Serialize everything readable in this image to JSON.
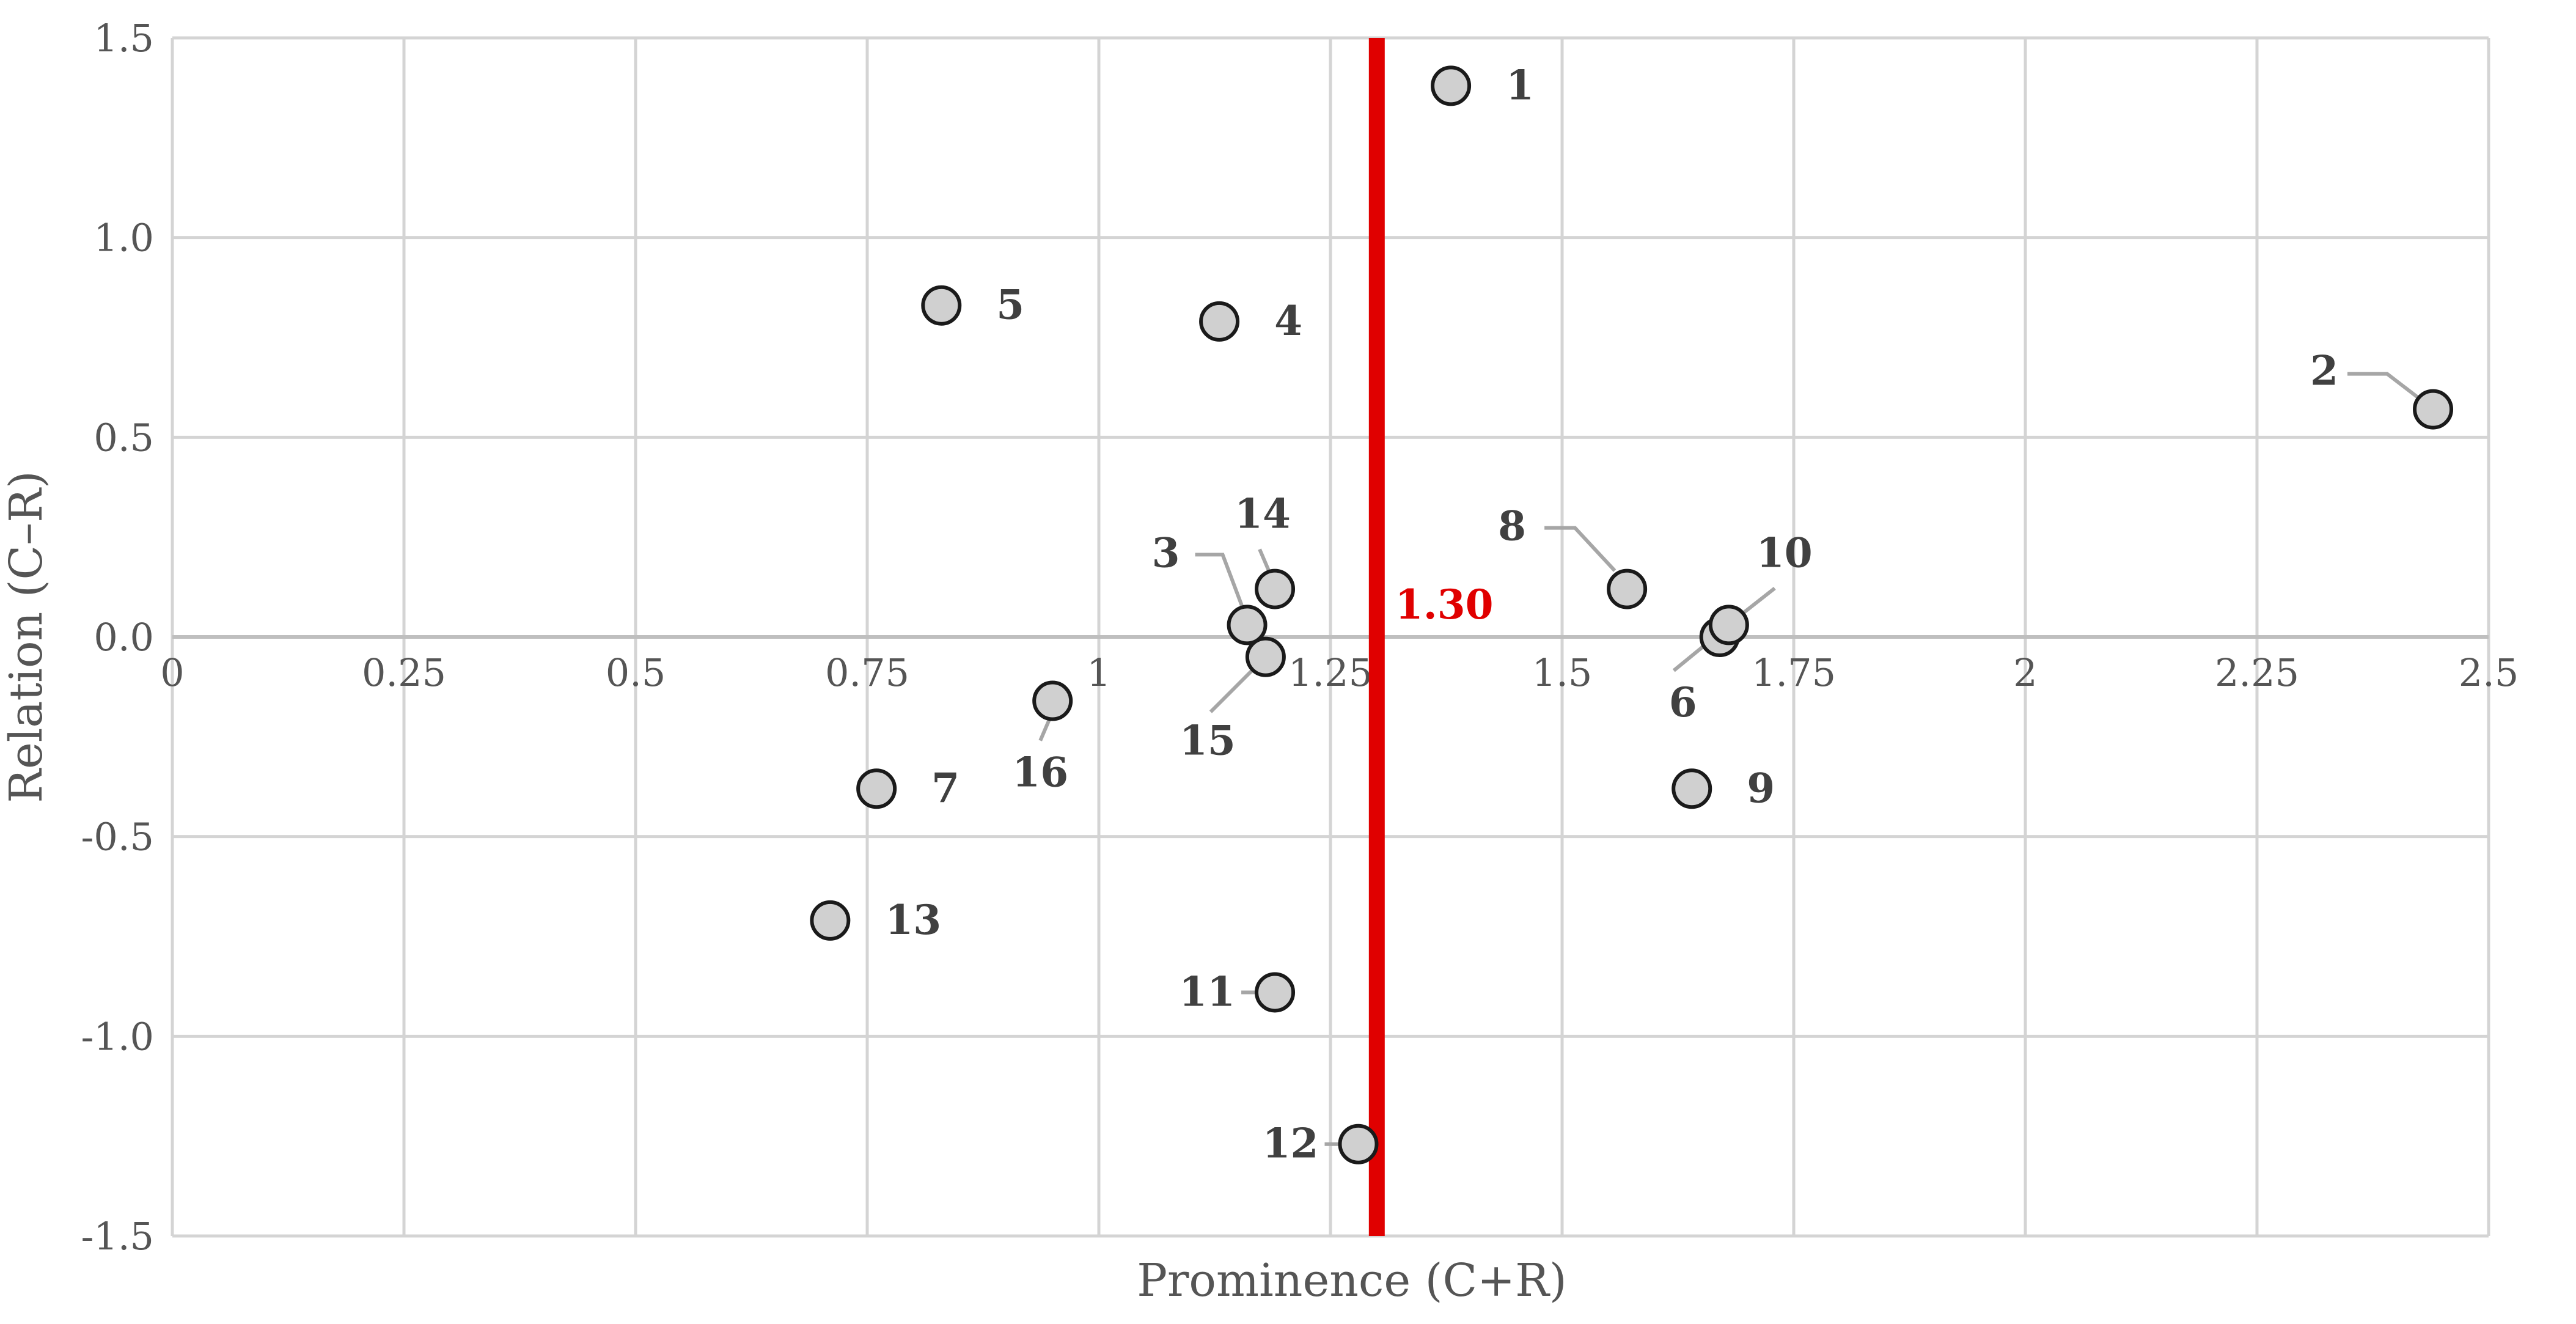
{
  "chart_data": {
    "type": "scatter",
    "xlabel": "Prominence (C+R)",
    "ylabel": "Relation (C–R)",
    "xlim": [
      0,
      2.5
    ],
    "ylim": [
      -1.5,
      1.5
    ],
    "x_ticks": [
      0,
      0.25,
      0.5,
      0.75,
      1,
      1.25,
      1.5,
      1.75,
      2,
      2.25,
      2.5
    ],
    "x_tick_labels": [
      "0",
      "0.25",
      "0.5",
      "0.75",
      "1",
      "1.25",
      "1.5",
      "1.75",
      "2",
      "2.25",
      "2.5"
    ],
    "y_ticks": [
      1.5,
      1.0,
      0.5,
      0.0,
      -0.5,
      -1.0,
      -1.5
    ],
    "y_tick_labels": [
      "1.5",
      "1.0",
      "0.5",
      "0.0",
      "-0.5",
      "-1.0",
      "-1.5"
    ],
    "grid": true,
    "threshold": {
      "x": 1.3,
      "label": "1.30",
      "color": "#e00000"
    },
    "marker_fill": "#d0d0d0",
    "marker_stroke": "#1a1a1a",
    "points": [
      {
        "label": "1",
        "x": 1.38,
        "y": 1.38
      },
      {
        "label": "2",
        "x": 2.44,
        "y": 0.57
      },
      {
        "label": "3",
        "x": 1.16,
        "y": 0.03
      },
      {
        "label": "4",
        "x": 1.13,
        "y": 0.79
      },
      {
        "label": "5",
        "x": 0.83,
        "y": 0.83
      },
      {
        "label": "6",
        "x": 1.67,
        "y": 0.0
      },
      {
        "label": "7",
        "x": 0.76,
        "y": -0.38
      },
      {
        "label": "8",
        "x": 1.57,
        "y": 0.12
      },
      {
        "label": "9",
        "x": 1.64,
        "y": -0.38
      },
      {
        "label": "10",
        "x": 1.68,
        "y": 0.03
      },
      {
        "label": "11",
        "x": 1.19,
        "y": -0.89
      },
      {
        "label": "12",
        "x": 1.28,
        "y": -1.27
      },
      {
        "label": "13",
        "x": 0.71,
        "y": -0.71
      },
      {
        "label": "14",
        "x": 1.19,
        "y": 0.12
      },
      {
        "label": "15",
        "x": 1.18,
        "y": -0.05
      },
      {
        "label": "16",
        "x": 0.95,
        "y": -0.16
      }
    ]
  }
}
